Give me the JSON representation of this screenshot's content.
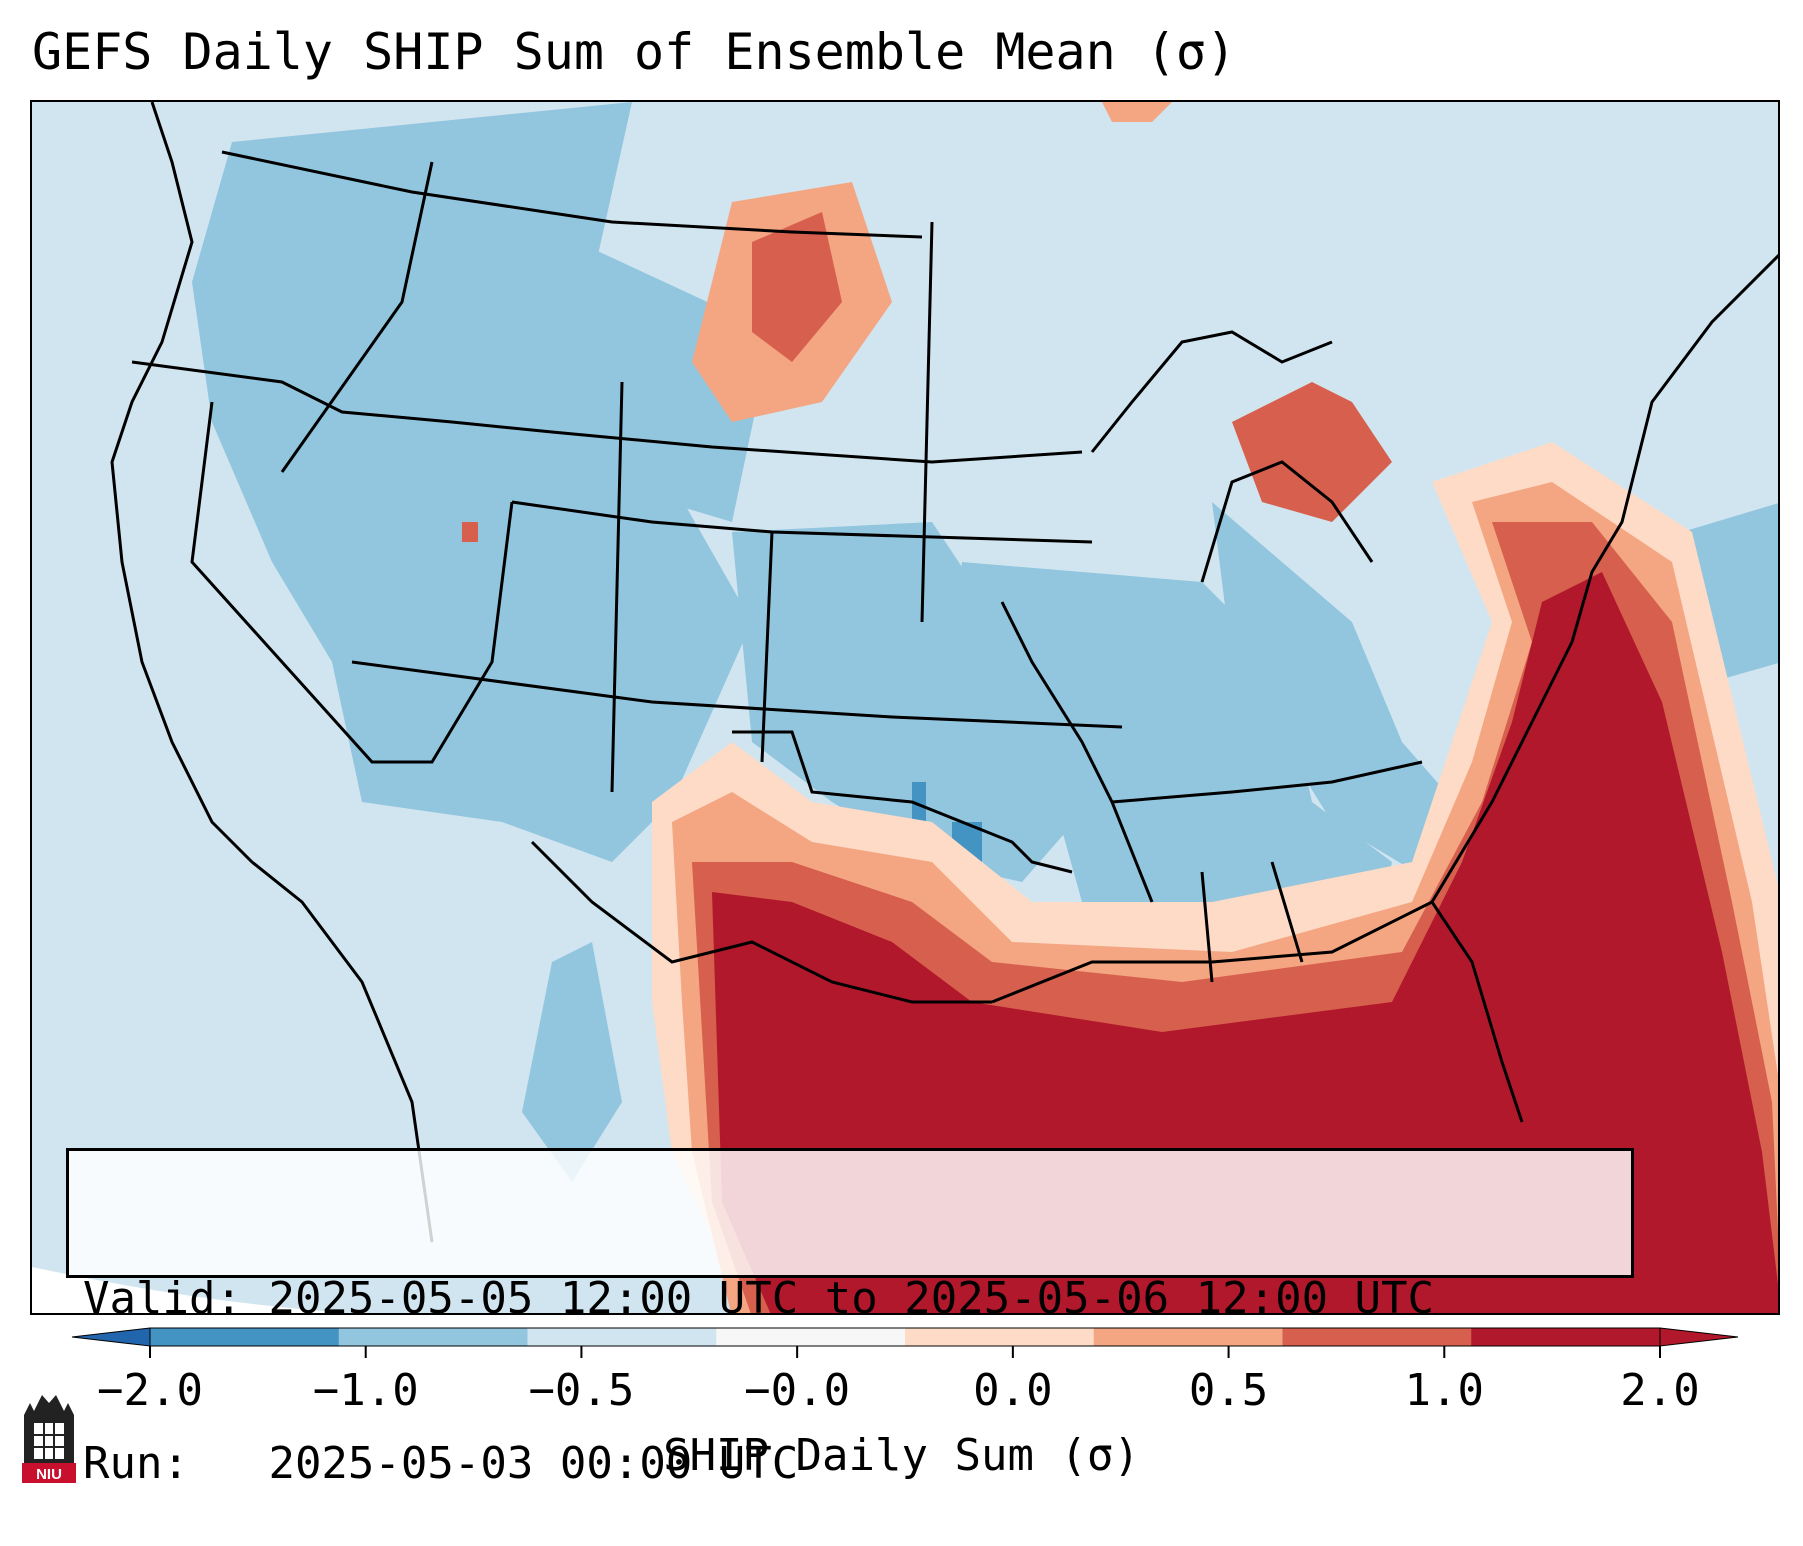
{
  "title": "GEFS Daily SHIP Sum of Ensemble Mean (σ)",
  "info": {
    "valid_label": "Valid:",
    "valid_value": "2025-05-05 12:00 UTC to 2025-05-06 12:00 UTC",
    "run_label": "Run:",
    "run_value": "2025-05-03 00:00 UTC"
  },
  "colorbar": {
    "label": "SHIP Daily Sum (σ)",
    "ticks": [
      "−2.0",
      "−1.0",
      "−0.5",
      "−0.0",
      "0.0",
      "0.5",
      "1.0",
      "2.0"
    ],
    "colors": [
      "#4393c3",
      "#92c5de",
      "#d1e5f0",
      "#f7f7f7",
      "#fddbc7",
      "#f4a582",
      "#d6604d",
      "#b2182b"
    ],
    "extend": "both"
  },
  "map": {
    "region": "CONUS",
    "field": "SHIP daily sum",
    "max_region_color": "#b2182b",
    "background_color": "#d1e5f0"
  },
  "logo": {
    "text": "NIU",
    "icon": "niu-logo-icon"
  }
}
